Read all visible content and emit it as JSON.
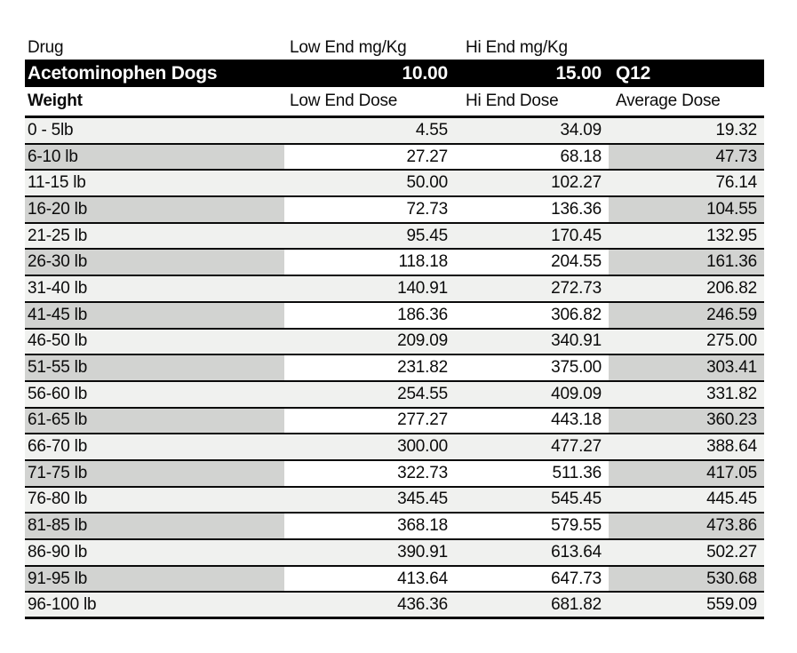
{
  "colors": {
    "banner_bg": "#000000",
    "banner_text": "#ffffff",
    "row_light": "#f0f1ef",
    "row_dark": "#d2d3d1",
    "row_white": "#ffffff",
    "border": "#0a0a0a",
    "text": "#0b0b0b"
  },
  "drug_header": {
    "drug_label": "Drug",
    "low_label": "Low End mg/Kg",
    "hi_label": "Hi End mg/Kg"
  },
  "banner": {
    "drug_name": "Acetominophen Dogs",
    "low_end_mg_kg": "10.00",
    "hi_end_mg_kg": "15.00",
    "frequency": "Q12"
  },
  "table": {
    "headers": {
      "weight": "Weight",
      "low": "Low End Dose",
      "hi": "Hi End Dose",
      "avg": "Average Dose"
    },
    "rows": [
      {
        "weight": "0 - 5lb",
        "low": "4.55",
        "hi": "34.09",
        "avg": "19.32"
      },
      {
        "weight": "6-10 lb",
        "low": "27.27",
        "hi": "68.18",
        "avg": "47.73"
      },
      {
        "weight": "11-15 lb",
        "low": "50.00",
        "hi": "102.27",
        "avg": "76.14"
      },
      {
        "weight": "16-20 lb",
        "low": "72.73",
        "hi": "136.36",
        "avg": "104.55"
      },
      {
        "weight": "21-25 lb",
        "low": "95.45",
        "hi": "170.45",
        "avg": "132.95"
      },
      {
        "weight": "26-30 lb",
        "low": "118.18",
        "hi": "204.55",
        "avg": "161.36"
      },
      {
        "weight": "31-40 lb",
        "low": "140.91",
        "hi": "272.73",
        "avg": "206.82"
      },
      {
        "weight": "41-45 lb",
        "low": "186.36",
        "hi": "306.82",
        "avg": "246.59"
      },
      {
        "weight": "46-50 lb",
        "low": "209.09",
        "hi": "340.91",
        "avg": "275.00"
      },
      {
        "weight": "51-55 lb",
        "low": "231.82",
        "hi": "375.00",
        "avg": "303.41"
      },
      {
        "weight": "56-60 lb",
        "low": "254.55",
        "hi": "409.09",
        "avg": "331.82"
      },
      {
        "weight": "61-65 lb",
        "low": "277.27",
        "hi": "443.18",
        "avg": "360.23"
      },
      {
        "weight": "66-70 lb",
        "low": "300.00",
        "hi": "477.27",
        "avg": "388.64"
      },
      {
        "weight": "71-75 lb",
        "low": "322.73",
        "hi": "511.36",
        "avg": "417.05"
      },
      {
        "weight": "76-80 lb",
        "low": "345.45",
        "hi": "545.45",
        "avg": "445.45"
      },
      {
        "weight": "81-85 lb",
        "low": "368.18",
        "hi": "579.55",
        "avg": "473.86"
      },
      {
        "weight": "86-90 lb",
        "low": "390.91",
        "hi": "613.64",
        "avg": "502.27"
      },
      {
        "weight": "91-95 lb",
        "low": "413.64",
        "hi": "647.73",
        "avg": "530.68"
      },
      {
        "weight": "96-100 lb",
        "low": "436.36",
        "hi": "681.82",
        "avg": "559.09"
      }
    ]
  }
}
